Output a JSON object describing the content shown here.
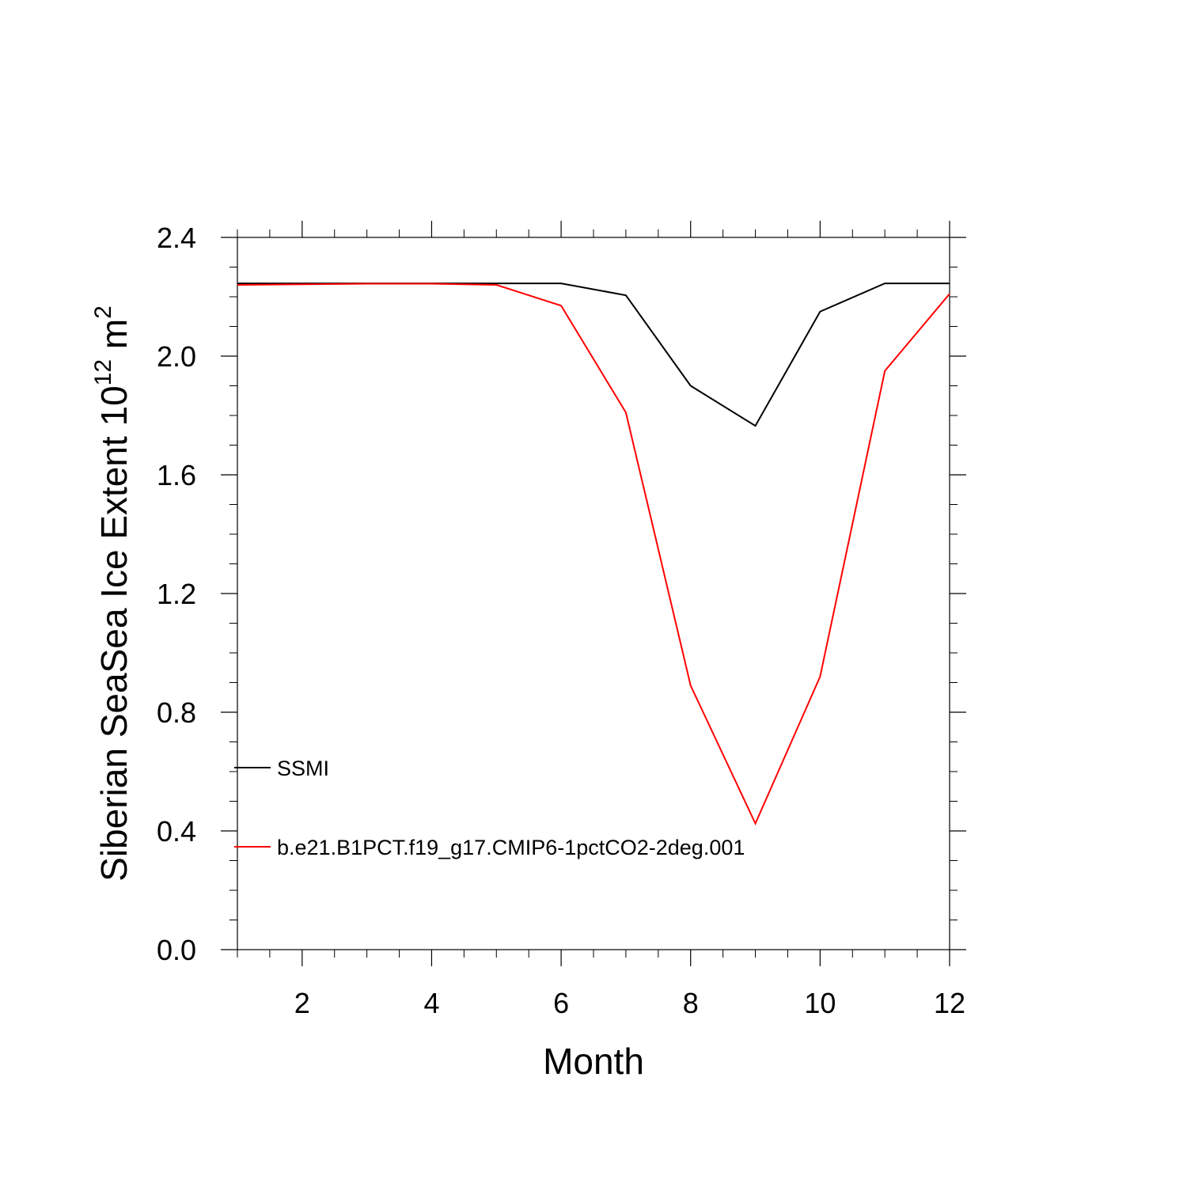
{
  "chart_data": {
    "type": "line",
    "title": "",
    "xlabel": "Month",
    "ylabel": {
      "prefix": "Siberian SeaSea Ice Extent 10",
      "superscript": "12",
      "middle": " m",
      "superscript2": "2"
    },
    "xlim": [
      1,
      12
    ],
    "ylim": [
      0.0,
      2.4
    ],
    "x_ticks": [
      2,
      4,
      6,
      8,
      10,
      12
    ],
    "x_tick_labels": [
      "2",
      "4",
      "6",
      "8",
      "10",
      "12"
    ],
    "y_ticks": [
      0.0,
      0.4,
      0.8,
      1.2,
      1.6,
      2.0,
      2.4
    ],
    "y_tick_labels": [
      "0.0",
      "0.4",
      "0.8",
      "1.2",
      "1.6",
      "2.0",
      "2.4"
    ],
    "grid": false,
    "legend_position": "lower-left",
    "x": [
      1,
      2,
      3,
      4,
      5,
      6,
      7,
      8,
      9,
      10,
      11,
      12
    ],
    "series": [
      {
        "name": "SSMI",
        "color": "#000000",
        "values": [
          2.245,
          2.245,
          2.245,
          2.245,
          2.245,
          2.245,
          2.205,
          1.9,
          1.765,
          2.15,
          2.245,
          2.245
        ]
      },
      {
        "name": "b.e21.B1PCT.f19_g17.CMIP6-1pctCO2-2deg.001",
        "color": "#ff0000",
        "values": [
          2.24,
          2.242,
          2.244,
          2.244,
          2.24,
          2.17,
          1.81,
          0.89,
          0.425,
          0.92,
          1.95,
          2.21
        ]
      }
    ]
  }
}
